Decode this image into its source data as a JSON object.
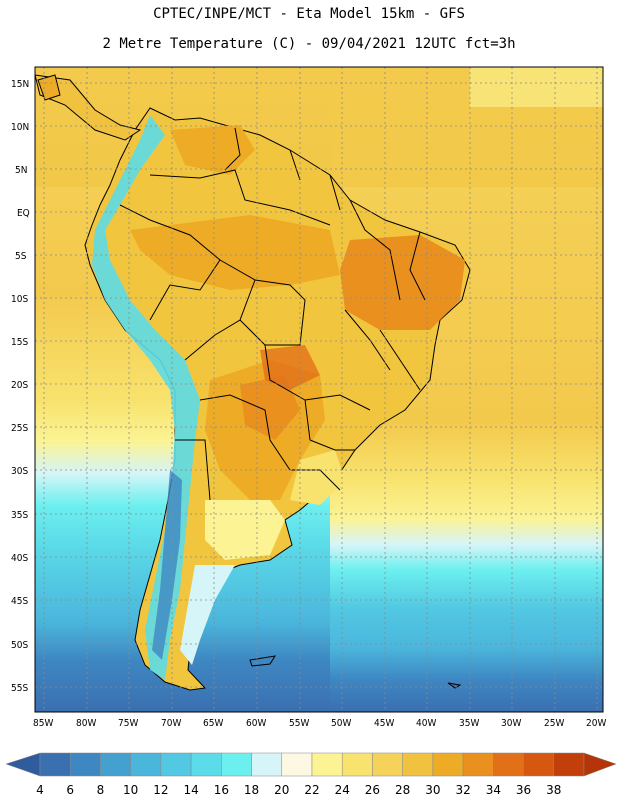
{
  "header": {
    "line1": "CPTEC/INPE/MCT -  Eta Model 15km - GFS",
    "line2": "2 Metre Temperature (C) - 09/04/2021 12UTC fct=3h"
  },
  "axes": {
    "lat_labels": [
      "15N",
      "10N",
      "5N",
      "EQ",
      "5S",
      "10S",
      "15S",
      "20S",
      "25S",
      "30S",
      "35S",
      "40S",
      "45S",
      "50S",
      "55S"
    ],
    "lon_labels": [
      "85W",
      "80W",
      "75W",
      "70W",
      "65W",
      "60W",
      "55W",
      "50W",
      "45W",
      "40W",
      "35W",
      "30W",
      "25W",
      "20W"
    ]
  },
  "colorbar": {
    "labels": [
      "4",
      "6",
      "8",
      "10",
      "12",
      "14",
      "16",
      "18",
      "20",
      "22",
      "24",
      "26",
      "28",
      "30",
      "32",
      "34",
      "36",
      "38"
    ],
    "colors": [
      "#3a6fb0",
      "#3e87c2",
      "#43a0cf",
      "#4bb6dc",
      "#52c8e2",
      "#5cdbe8",
      "#6cefef",
      "#d6f5f8",
      "#fdf8e4",
      "#fbf394",
      "#f8e36e",
      "#f5d35a",
      "#f1c23f",
      "#eeab25",
      "#e9901f",
      "#e27019",
      "#d65810",
      "#c23e0a"
    ],
    "low_arrow_color": "#2f5c9c",
    "high_arrow_color": "#b53408"
  },
  "colors": {
    "sea_warm": "#f3c94c",
    "land_hot": "#eeab25",
    "land_warm": "#f2c53e",
    "andes": "#52c8e2",
    "ocean_cold": "#3a6fb0"
  }
}
